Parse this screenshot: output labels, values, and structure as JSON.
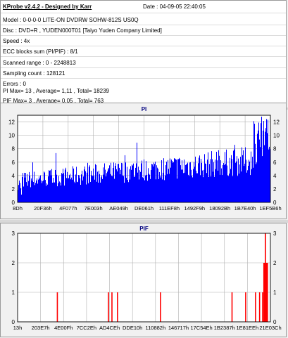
{
  "header": {
    "title": "KProbe v2.4.2 - Designed by Karr",
    "date": "Date : 04-09-05 22:40:05"
  },
  "info_lines": [
    "Model : 0-0-0-0 LITE-ON DVDRW SOHW-812S  US0Q",
    "Disc : DVD+R , YUDEN000T01 [Taiyo Yuden Company Limited]",
    "Speed : 4x",
    "ECC blocks sum (PI/PIF) : 8/1",
    "Scanned range : 0 - 2248813",
    "Sampling count : 128121",
    "Errors : 0",
    "PI Max= 13 , Average= 1,11 , Total= 18239",
    "PIF Max= 3 , Average= 0,05 , Total= 763"
  ],
  "colors": {
    "pi_bars": "#0000ff",
    "pif_bars": "#ff0000",
    "title_text": "#00007f"
  },
  "chart_data": [
    {
      "type": "bar",
      "title": "PI",
      "ylim": [
        0,
        13
      ],
      "yticks": [
        0,
        2,
        4,
        6,
        8,
        10,
        12
      ],
      "grid": true,
      "xticks": [
        "8Dh",
        "20F36h",
        "4F077h",
        "7E003h",
        "AE049h",
        "DE061h",
        "111EF8h",
        "1492F9h",
        "18092Bh",
        "1B7E40h",
        "1EF5B6h"
      ],
      "x_range": [
        0,
        2248813
      ],
      "summary": {
        "max": 13,
        "average": 1.11,
        "total": 18239
      }
    },
    {
      "type": "bar",
      "title": "PIF",
      "ylim": [
        0,
        3
      ],
      "yticks": [
        0,
        1,
        2,
        3
      ],
      "grid": true,
      "xticks": [
        "13h",
        "203E7h",
        "4E00Fh",
        "7CC2Eh",
        "AD4CEh",
        "DDE10h",
        "110882h",
        "146717h",
        "17C54Eh",
        "1B2387h",
        "1E81EEh",
        "21E03Ch"
      ],
      "x_range": [
        0,
        2248813
      ],
      "spikes": [
        {
          "x": 0.155,
          "v": 1
        },
        {
          "x": 0.357,
          "v": 1
        },
        {
          "x": 0.371,
          "v": 1
        },
        {
          "x": 0.393,
          "v": 1
        },
        {
          "x": 0.563,
          "v": 1
        },
        {
          "x": 0.846,
          "v": 1
        },
        {
          "x": 0.9,
          "v": 1
        },
        {
          "x": 0.939,
          "v": 1
        },
        {
          "x": 0.955,
          "v": 1
        },
        {
          "x": 0.967,
          "v": 1
        },
        {
          "x": 0.974,
          "v": 2
        },
        {
          "x": 0.978,
          "v": 3
        },
        {
          "x": 0.982,
          "v": 2
        },
        {
          "x": 0.986,
          "v": 2
        }
      ],
      "summary": {
        "max": 3,
        "average": 0.05,
        "total": 763
      }
    }
  ]
}
